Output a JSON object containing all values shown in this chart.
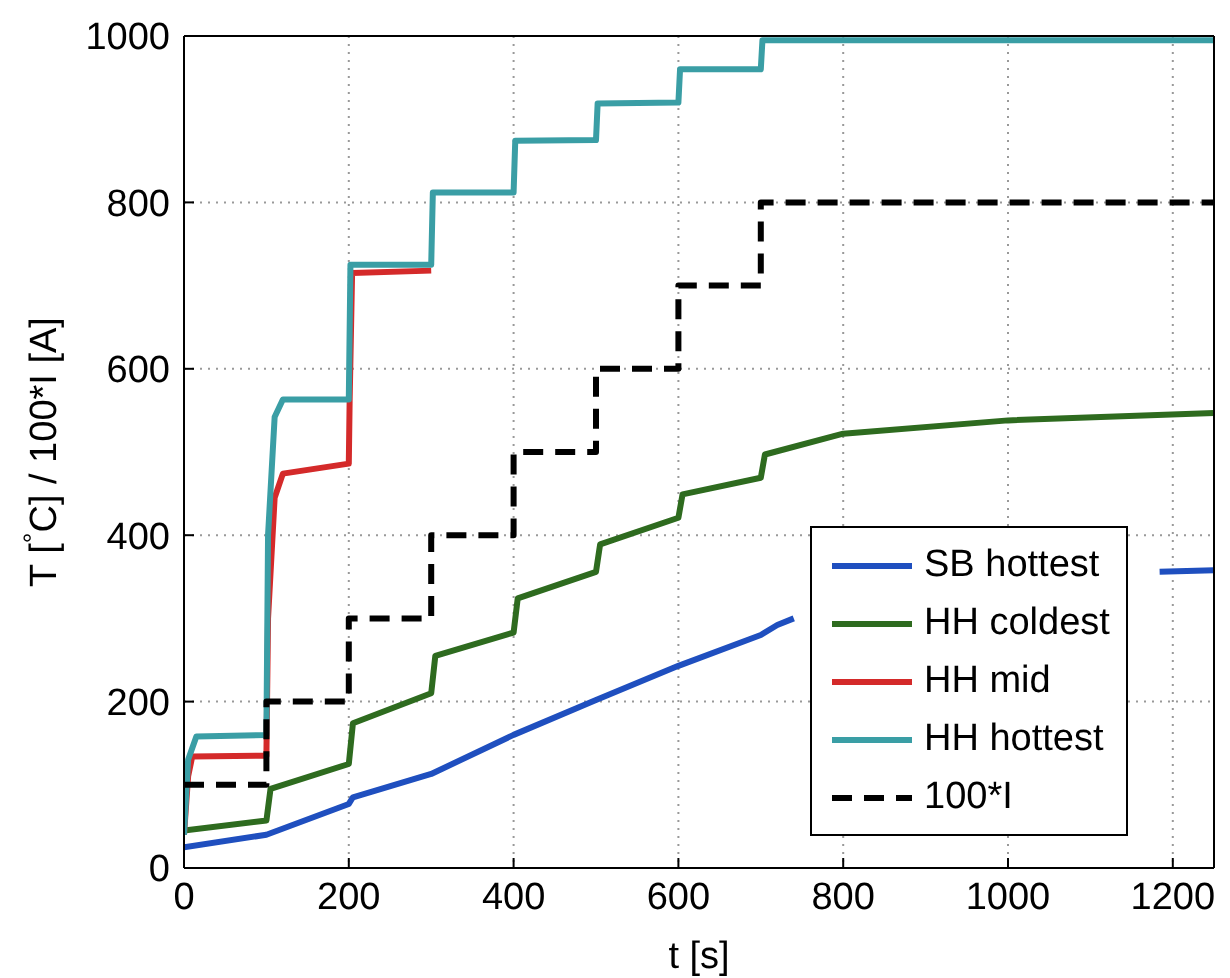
{
  "chart_data": {
    "type": "line",
    "xlabel": "t [s]",
    "ylabel": "T [$^{°}$C]   /   100*I [A]",
    "xlim": [
      0,
      1250
    ],
    "xticks": [
      0,
      200,
      400,
      600,
      800,
      1000,
      1200
    ],
    "ylim": [
      0,
      1000
    ],
    "yticks": [
      0,
      200,
      400,
      600,
      800,
      1000
    ],
    "grid": true,
    "legend": "bottom right",
    "marker": "none",
    "series": [
      {
        "name": "SB hottest",
        "color": "#1f4fbf",
        "x": [
          0,
          100,
          200,
          205,
          300,
          400,
          500,
          600,
          700,
          720,
          740,
          900,
          1184,
          1250
        ],
        "values": [
          25,
          40,
          77,
          85,
          113,
          160,
          202,
          243,
          280,
          292,
          300,
          null,
          356,
          358
        ]
      },
      {
        "name": "HH coldest",
        "color": "#2e6b1f",
        "x": [
          0,
          100,
          105,
          200,
          205,
          300,
          305,
          400,
          405,
          500,
          505,
          600,
          605,
          700,
          705,
          800,
          1000,
          1250
        ],
        "values": [
          45,
          57,
          95,
          125,
          174,
          210,
          255,
          283,
          324,
          356,
          389,
          421,
          449,
          469,
          497,
          522,
          538,
          547
        ]
      },
      {
        "name": "HH mid",
        "color": "#d42a2a",
        "x": [
          0,
          5,
          10,
          100,
          102,
          110,
          120,
          200,
          201,
          204,
          300
        ],
        "values": [
          40,
          110,
          134,
          135,
          300,
          445,
          474,
          486,
          560,
          715,
          718
        ]
      },
      {
        "name": "HH hottest",
        "color": "#3a9ea5",
        "x": [
          0,
          5,
          15,
          100,
          102,
          110,
          120,
          200,
          202,
          300,
          302,
          400,
          402,
          500,
          502,
          600,
          602,
          700,
          702,
          1250
        ],
        "values": [
          40,
          130,
          158,
          160,
          400,
          542,
          563,
          563,
          725,
          725,
          812,
          812,
          874,
          875,
          919,
          920,
          960,
          960,
          995,
          995
        ]
      },
      {
        "name": "100*I",
        "type": "step",
        "color": "#000000",
        "line_style": "dashed",
        "x": [
          0,
          100,
          200,
          300,
          400,
          500,
          600,
          700,
          1250
        ],
        "values": [
          100,
          200,
          300,
          400,
          500,
          600,
          700,
          800,
          800
        ]
      }
    ]
  }
}
